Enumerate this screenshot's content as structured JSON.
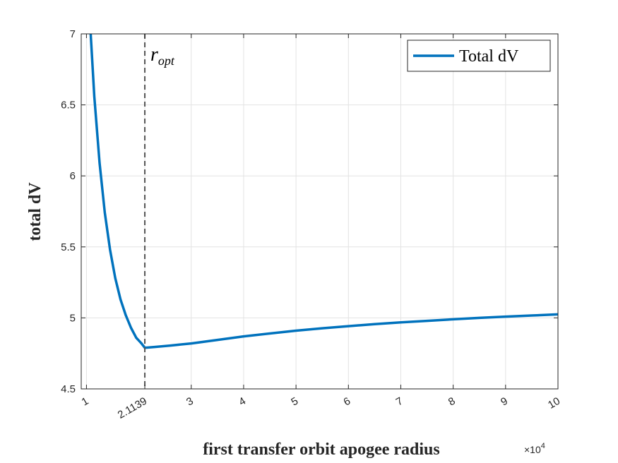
{
  "chart_data": {
    "type": "line",
    "xlabel": "first transfer orbit apogee radius",
    "ylabel": "total dV",
    "x_exponent_base": "×10",
    "x_exponent_power": "4",
    "xlim": [
      0.9,
      10
    ],
    "ylim": [
      4.5,
      7
    ],
    "xticks": [
      1,
      2.1139,
      3,
      4,
      5,
      6,
      7,
      8,
      9,
      10
    ],
    "xtick_labels": [
      "1",
      "2.1139",
      "3",
      "4",
      "5",
      "6",
      "7",
      "8",
      "9",
      "10"
    ],
    "yticks": [
      4.5,
      5,
      5.5,
      6,
      6.5,
      7
    ],
    "ytick_labels": [
      "4.5",
      "5",
      "5.5",
      "6",
      "6.5",
      "7"
    ],
    "grid": true,
    "legend_position": "top-right",
    "series": [
      {
        "name": "Total dV",
        "color": "#0072BD",
        "x": [
          1.08,
          1.15,
          1.25,
          1.35,
          1.45,
          1.55,
          1.65,
          1.75,
          1.85,
          1.95,
          2.05,
          2.1139,
          2.3,
          2.6,
          3,
          3.5,
          4,
          4.5,
          5,
          5.5,
          6,
          6.5,
          7,
          7.5,
          8,
          8.5,
          9,
          9.5,
          10
        ],
        "y": [
          7.0,
          6.56,
          6.09,
          5.74,
          5.48,
          5.28,
          5.13,
          5.02,
          4.93,
          4.86,
          4.82,
          4.79,
          4.795,
          4.805,
          4.82,
          4.845,
          4.87,
          4.89,
          4.91,
          4.927,
          4.942,
          4.956,
          4.968,
          4.979,
          4.99,
          5.0,
          5.009,
          5.017,
          5.025
        ]
      }
    ],
    "vline": {
      "x": 2.1139,
      "color": "#555555",
      "style": "dashed",
      "label_main": "r",
      "label_sub": "opt"
    }
  }
}
